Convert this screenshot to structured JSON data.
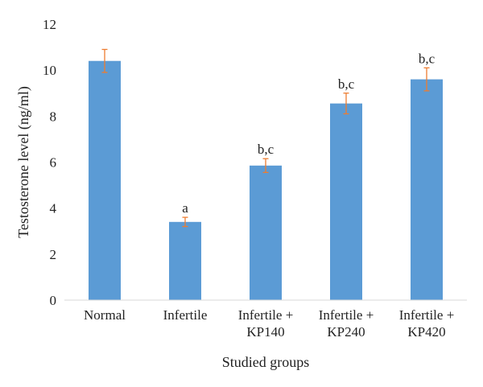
{
  "chart_data": {
    "type": "bar",
    "categories": [
      [
        "Normal"
      ],
      [
        "Infertile"
      ],
      [
        "Infertile +",
        "KP140"
      ],
      [
        "Infertile +",
        "KP240"
      ],
      [
        "Infertile +",
        "KP420"
      ]
    ],
    "values": [
      10.4,
      3.4,
      5.85,
      8.55,
      9.6
    ],
    "error": [
      0.5,
      0.2,
      0.3,
      0.45,
      0.5
    ],
    "significance": [
      "",
      "a",
      "b,c",
      "b,c",
      "b,c"
    ],
    "title": "",
    "xlabel": "Studied groups",
    "ylabel": "Testosterone level (ng/ml)",
    "ylim": [
      0,
      12
    ],
    "yticks": [
      0,
      2,
      4,
      6,
      8,
      10,
      12
    ],
    "grid": false,
    "legend": "none",
    "bar_color": "#5b9bd5",
    "error_color": "#ed7d31",
    "axis_color": "#d9d9d9"
  }
}
